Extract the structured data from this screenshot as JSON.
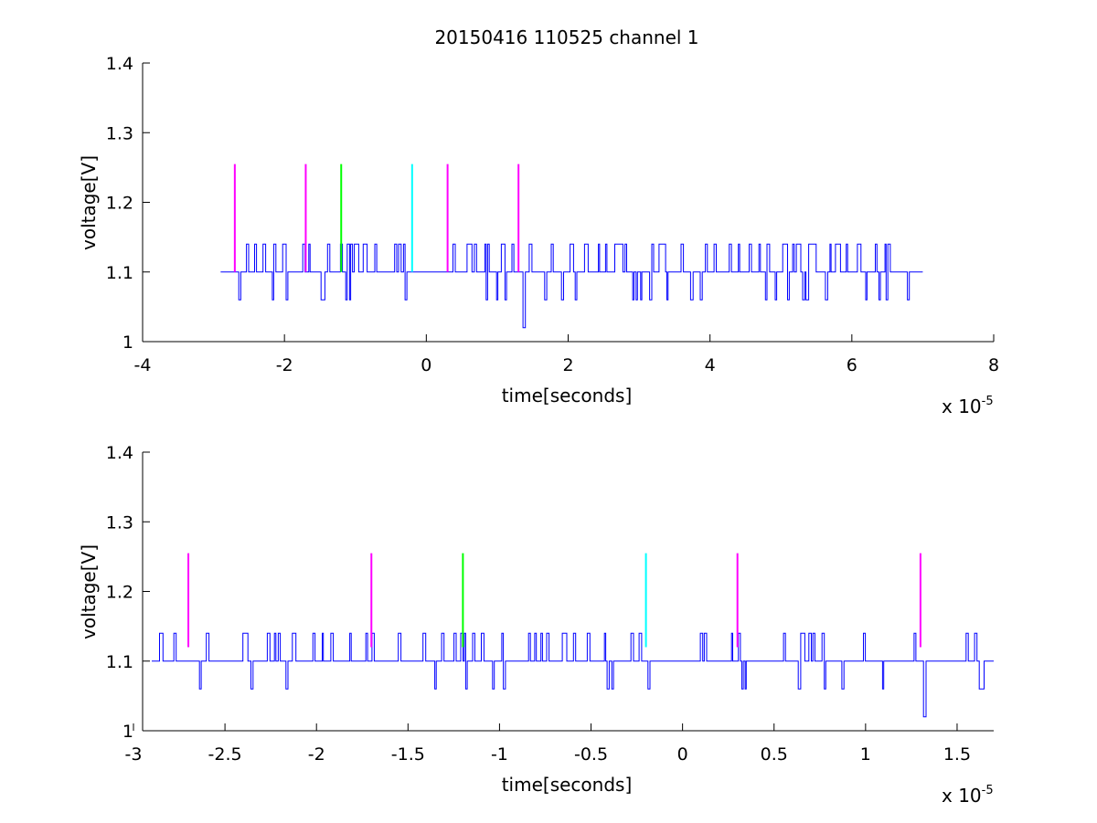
{
  "title": "20150416 110525 channel 1",
  "chart_data": [
    {
      "type": "line",
      "title": "20150416 110525 channel 1",
      "xlabel": "time[seconds]",
      "ylabel": "voltage[V]",
      "x_exponent_label": "x 10",
      "x_exponent": "-5",
      "xlim": [
        -4e-05,
        8e-05
      ],
      "ylim": [
        1.0,
        1.4
      ],
      "x_ticks": [
        -4e-05,
        -2e-05,
        0,
        2e-05,
        4e-05,
        6e-05,
        8e-05
      ],
      "x_tick_labels": [
        "-4",
        "-2",
        "0",
        "2",
        "4",
        "6",
        "8"
      ],
      "y_ticks": [
        1.0,
        1.1,
        1.2,
        1.3,
        1.4
      ],
      "y_tick_labels": [
        "1",
        "1.1",
        "1.2",
        "1.3",
        "1.4"
      ],
      "grid": false,
      "series": [
        {
          "color": "#0000ff",
          "x_start": -2.9e-05,
          "x_end": 7e-05,
          "baseline": 1.1,
          "levels": [
            1.02,
            1.06,
            1.1,
            1.14
          ]
        }
      ],
      "markers": [
        {
          "x": -2.7e-05,
          "y_from": 1.1,
          "y_to": 1.255,
          "color": "#ff00ff"
        },
        {
          "x": -1.7e-05,
          "y_from": 1.1,
          "y_to": 1.255,
          "color": "#ff00ff"
        },
        {
          "x": -1.2e-05,
          "y_from": 1.1,
          "y_to": 1.255,
          "color": "#00ff00"
        },
        {
          "x": -2e-06,
          "y_from": 1.1,
          "y_to": 1.255,
          "color": "#00ffff"
        },
        {
          "x": 3e-06,
          "y_from": 1.1,
          "y_to": 1.255,
          "color": "#ff00ff"
        },
        {
          "x": 1.3e-05,
          "y_from": 1.1,
          "y_to": 1.255,
          "color": "#ff00ff"
        }
      ]
    },
    {
      "type": "line",
      "title": "",
      "xlabel": "time[seconds]",
      "ylabel": "voltage[V]",
      "x_exponent_label": "x 10",
      "x_exponent": "-5",
      "xlim": [
        -2.95e-05,
        1.7e-05
      ],
      "ylim": [
        1.0,
        1.4
      ],
      "x_ticks": [
        -3e-05,
        -2.5e-05,
        -2e-05,
        -1.5e-05,
        -1e-05,
        -5e-06,
        0,
        5e-06,
        1e-05,
        1.5e-05
      ],
      "x_tick_labels": [
        "-3",
        "-2.5",
        "-2",
        "-1.5",
        "-1",
        "-0.5",
        "0",
        "0.5",
        "1",
        "1.5"
      ],
      "y_ticks": [
        1.0,
        1.1,
        1.2,
        1.3,
        1.4
      ],
      "y_tick_labels": [
        "1",
        "1.1",
        "1.2",
        "1.3",
        "1.4"
      ],
      "grid": false,
      "series": [
        {
          "color": "#0000ff",
          "x_start": -2.9e-05,
          "x_end": 1.7e-05,
          "baseline": 1.1,
          "levels": [
            1.02,
            1.06,
            1.1,
            1.14
          ]
        }
      ],
      "markers": [
        {
          "x": -2.7e-05,
          "y_from": 1.12,
          "y_to": 1.255,
          "color": "#ff00ff"
        },
        {
          "x": -1.7e-05,
          "y_from": 1.12,
          "y_to": 1.255,
          "color": "#ff00ff"
        },
        {
          "x": -1.2e-05,
          "y_from": 1.12,
          "y_to": 1.255,
          "color": "#00ff00"
        },
        {
          "x": -2e-06,
          "y_from": 1.12,
          "y_to": 1.255,
          "color": "#00ffff"
        },
        {
          "x": 3e-06,
          "y_from": 1.12,
          "y_to": 1.255,
          "color": "#ff00ff"
        },
        {
          "x": 1.3e-05,
          "y_from": 1.12,
          "y_to": 1.255,
          "color": "#ff00ff"
        }
      ]
    }
  ]
}
